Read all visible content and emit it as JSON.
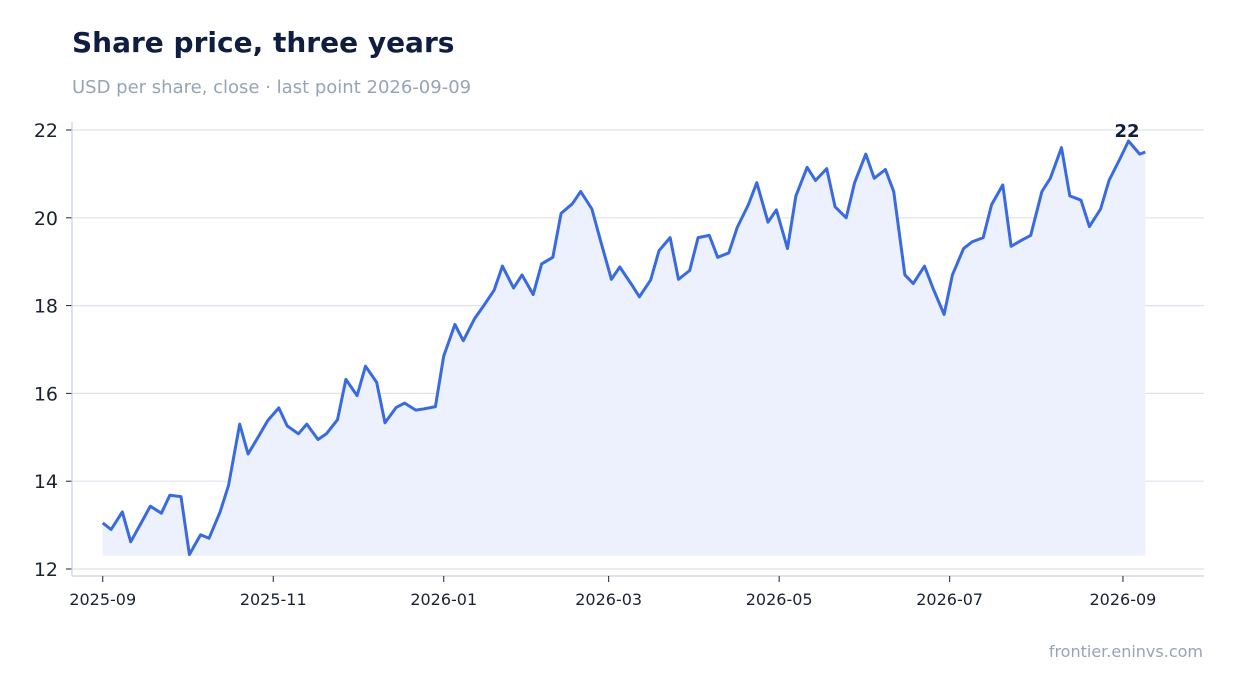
{
  "header": {
    "title": "Share price, three years",
    "subtitle": "USD per share, close · last point 2026-09-09"
  },
  "footer": {
    "source": "frontier.eninvs.com"
  },
  "colors": {
    "line": "#3a6ae0",
    "fill": "#ecf1fd",
    "grid": "#dde3ee",
    "axis": "#c9d1de",
    "title": "#0f1d40",
    "muted": "#97a4b6"
  },
  "chart_data": {
    "type": "area",
    "title": "Share price, three years",
    "subtitle": "USD per share, close · last point 2026-09-09",
    "xlabel": "",
    "ylabel": "",
    "ylim": [
      12,
      22
    ],
    "xlim": [
      "2025-08-21",
      "2026-09-30"
    ],
    "y_ticks": [
      12,
      14,
      16,
      18,
      20,
      22
    ],
    "x_ticks": [
      "2025-09",
      "2025-11",
      "2026-01",
      "2026-03",
      "2026-05",
      "2026-07",
      "2026-09"
    ],
    "grid": true,
    "end_label": "22",
    "series": [
      {
        "x": [
          "2025-09-01",
          "2025-09-04",
          "2025-09-08",
          "2025-09-11",
          "2025-09-15",
          "2025-09-18",
          "2025-09-22",
          "2025-09-25",
          "2025-09-29",
          "2025-10-02",
          "2025-10-06",
          "2025-10-09",
          "2025-10-13",
          "2025-10-16",
          "2025-10-20",
          "2025-10-23",
          "2025-10-27",
          "2025-10-30",
          "2025-11-03",
          "2025-11-06",
          "2025-11-10",
          "2025-11-13",
          "2025-11-17",
          "2025-11-20",
          "2025-11-24",
          "2025-11-27",
          "2025-12-01",
          "2025-12-04",
          "2025-12-08",
          "2025-12-11",
          "2025-12-15",
          "2025-12-18",
          "2025-12-22",
          "2025-12-25",
          "2025-12-29",
          "2026-01-01",
          "2026-01-05",
          "2026-01-08",
          "2026-01-12",
          "2026-01-15",
          "2026-01-19",
          "2026-01-22",
          "2026-01-26",
          "2026-01-29",
          "2026-02-02",
          "2026-02-05",
          "2026-02-09",
          "2026-02-12",
          "2026-02-16",
          "2026-02-19",
          "2026-02-23",
          "2026-02-26",
          "2026-03-02",
          "2026-03-05",
          "2026-03-09",
          "2026-03-12",
          "2026-03-16",
          "2026-03-19",
          "2026-03-23",
          "2026-03-26",
          "2026-03-30",
          "2026-04-02",
          "2026-04-06",
          "2026-04-09",
          "2026-04-13",
          "2026-04-16",
          "2026-04-20",
          "2026-04-23",
          "2026-04-27",
          "2026-04-30",
          "2026-05-04",
          "2026-05-07",
          "2026-05-11",
          "2026-05-14",
          "2026-05-18",
          "2026-05-21",
          "2026-05-25",
          "2026-05-28",
          "2026-06-01",
          "2026-06-04",
          "2026-06-08",
          "2026-06-11",
          "2026-06-15",
          "2026-06-18",
          "2026-06-22",
          "2026-06-25",
          "2026-06-29",
          "2026-07-02",
          "2026-07-06",
          "2026-07-09",
          "2026-07-13",
          "2026-07-16",
          "2026-07-20",
          "2026-07-23",
          "2026-07-27",
          "2026-07-30",
          "2026-08-03",
          "2026-08-06",
          "2026-08-10",
          "2026-08-13",
          "2026-08-17",
          "2026-08-20",
          "2026-08-24",
          "2026-08-27",
          "2026-08-31",
          "2026-09-03",
          "2026-09-07",
          "2026-09-09"
        ],
        "values": [
          13.05,
          12.9,
          13.3,
          12.62,
          13.08,
          13.43,
          13.27,
          13.68,
          13.65,
          12.33,
          12.78,
          12.7,
          13.3,
          13.9,
          15.3,
          14.62,
          15.05,
          15.38,
          15.67,
          15.26,
          15.08,
          15.3,
          14.95,
          15.08,
          15.4,
          16.32,
          15.95,
          16.62,
          16.25,
          15.33,
          15.68,
          15.78,
          15.62,
          15.65,
          15.7,
          16.85,
          17.57,
          17.2,
          17.7,
          17.97,
          18.35,
          18.9,
          18.4,
          18.7,
          18.25,
          18.95,
          19.1,
          20.1,
          20.32,
          20.6,
          20.2,
          19.5,
          18.6,
          18.88,
          18.5,
          18.2,
          18.58,
          19.25,
          19.55,
          18.6,
          18.8,
          19.55,
          19.6,
          19.1,
          19.2,
          19.78,
          20.3,
          20.8,
          19.9,
          20.18,
          19.3,
          20.5,
          21.15,
          20.85,
          21.12,
          20.25,
          20.0,
          20.8,
          21.45,
          20.9,
          21.1,
          20.6,
          18.7,
          18.5,
          18.9,
          18.4,
          17.8,
          18.7,
          19.3,
          19.45,
          19.55,
          20.3,
          20.75,
          19.35,
          19.5,
          19.6,
          20.6,
          20.9,
          21.6,
          20.5,
          20.4,
          19.8,
          20.2,
          20.85,
          21.35,
          21.75,
          21.45,
          21.5
        ]
      }
    ]
  }
}
